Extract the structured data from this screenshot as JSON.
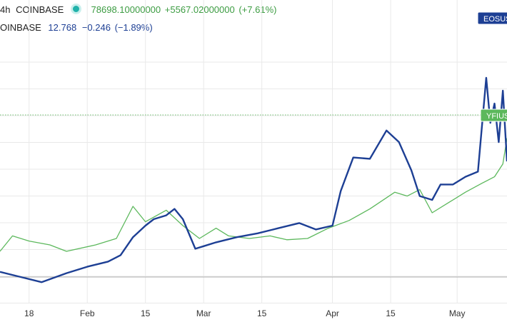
{
  "header": {
    "interval": "4h",
    "exchange": "COINBASE",
    "series1_price": "78698.10000000",
    "series1_change": "+5567.02000000",
    "series1_pct": "(+7.61%)",
    "series2_source": "OINBASE",
    "series2_price": "12.768",
    "series2_change": "−0.246",
    "series2_pct": "(−1.89%)"
  },
  "colors": {
    "eos": "#1d3f94",
    "yfi": "#5cb85c",
    "grid": "#e9e9e9",
    "baseline": "#b0b0b0",
    "price_line": "#6cbf6c"
  },
  "chart_data": {
    "type": "line",
    "x_axis": "date",
    "xlim": [
      "2021-01-11",
      "2021-05-13"
    ],
    "x_tick_labels": [
      "18",
      "Feb",
      "15",
      "Mar",
      "15",
      "Apr",
      "15",
      "May"
    ],
    "grid": true,
    "series": [
      {
        "name": "EOSUS",
        "color": "#1d3f94",
        "unit": "relative",
        "x": [
          "2021-01-11",
          "2021-01-16",
          "2021-01-21",
          "2021-01-27",
          "2021-02-01",
          "2021-02-06",
          "2021-02-09",
          "2021-02-12",
          "2021-02-15",
          "2021-02-17",
          "2021-02-20",
          "2021-02-22",
          "2021-02-24",
          "2021-02-27",
          "2021-03-01",
          "2021-03-04",
          "2021-03-09",
          "2021-03-14",
          "2021-03-19",
          "2021-03-24",
          "2021-03-28",
          "2021-04-01",
          "2021-04-03",
          "2021-04-06",
          "2021-04-10",
          "2021-04-14",
          "2021-04-17",
          "2021-04-20",
          "2021-04-22",
          "2021-04-25",
          "2021-04-27",
          "2021-04-30",
          "2021-05-03",
          "2021-05-06",
          "2021-05-08",
          "2021-05-09",
          "2021-05-10",
          "2021-05-11",
          "2021-05-12",
          "2021-05-13"
        ],
        "values": [
          0.04,
          0.0,
          -0.04,
          0.03,
          0.08,
          0.12,
          0.17,
          0.31,
          0.4,
          0.45,
          0.48,
          0.53,
          0.45,
          0.22,
          0.24,
          0.27,
          0.31,
          0.34,
          0.38,
          0.42,
          0.37,
          0.4,
          0.67,
          0.93,
          0.92,
          1.14,
          1.05,
          0.83,
          0.63,
          0.6,
          0.72,
          0.72,
          0.78,
          0.82,
          1.55,
          1.2,
          1.35,
          1.05,
          1.45,
          0.9
        ]
      },
      {
        "name": "YFIUS",
        "color": "#5cb85c",
        "unit": "relative",
        "x": [
          "2021-01-11",
          "2021-01-14",
          "2021-01-18",
          "2021-01-23",
          "2021-01-27",
          "2021-02-03",
          "2021-02-08",
          "2021-02-12",
          "2021-02-15",
          "2021-02-20",
          "2021-02-24",
          "2021-02-28",
          "2021-03-04",
          "2021-03-07",
          "2021-03-12",
          "2021-03-17",
          "2021-03-21",
          "2021-03-26",
          "2021-03-31",
          "2021-04-05",
          "2021-04-10",
          "2021-04-16",
          "2021-04-19",
          "2021-04-22",
          "2021-04-25",
          "2021-04-29",
          "2021-05-03",
          "2021-05-07",
          "2021-05-10",
          "2021-05-12",
          "2021-05-13"
        ],
        "values": [
          0.2,
          0.32,
          0.28,
          0.25,
          0.2,
          0.25,
          0.3,
          0.55,
          0.43,
          0.52,
          0.4,
          0.3,
          0.38,
          0.32,
          0.3,
          0.32,
          0.29,
          0.3,
          0.38,
          0.44,
          0.53,
          0.66,
          0.63,
          0.68,
          0.5,
          0.58,
          0.66,
          0.73,
          0.78,
          0.88,
          1.08
        ]
      }
    ]
  },
  "tags": {
    "eos_label": "EOSUS",
    "yfi_label": "YFIUS"
  }
}
